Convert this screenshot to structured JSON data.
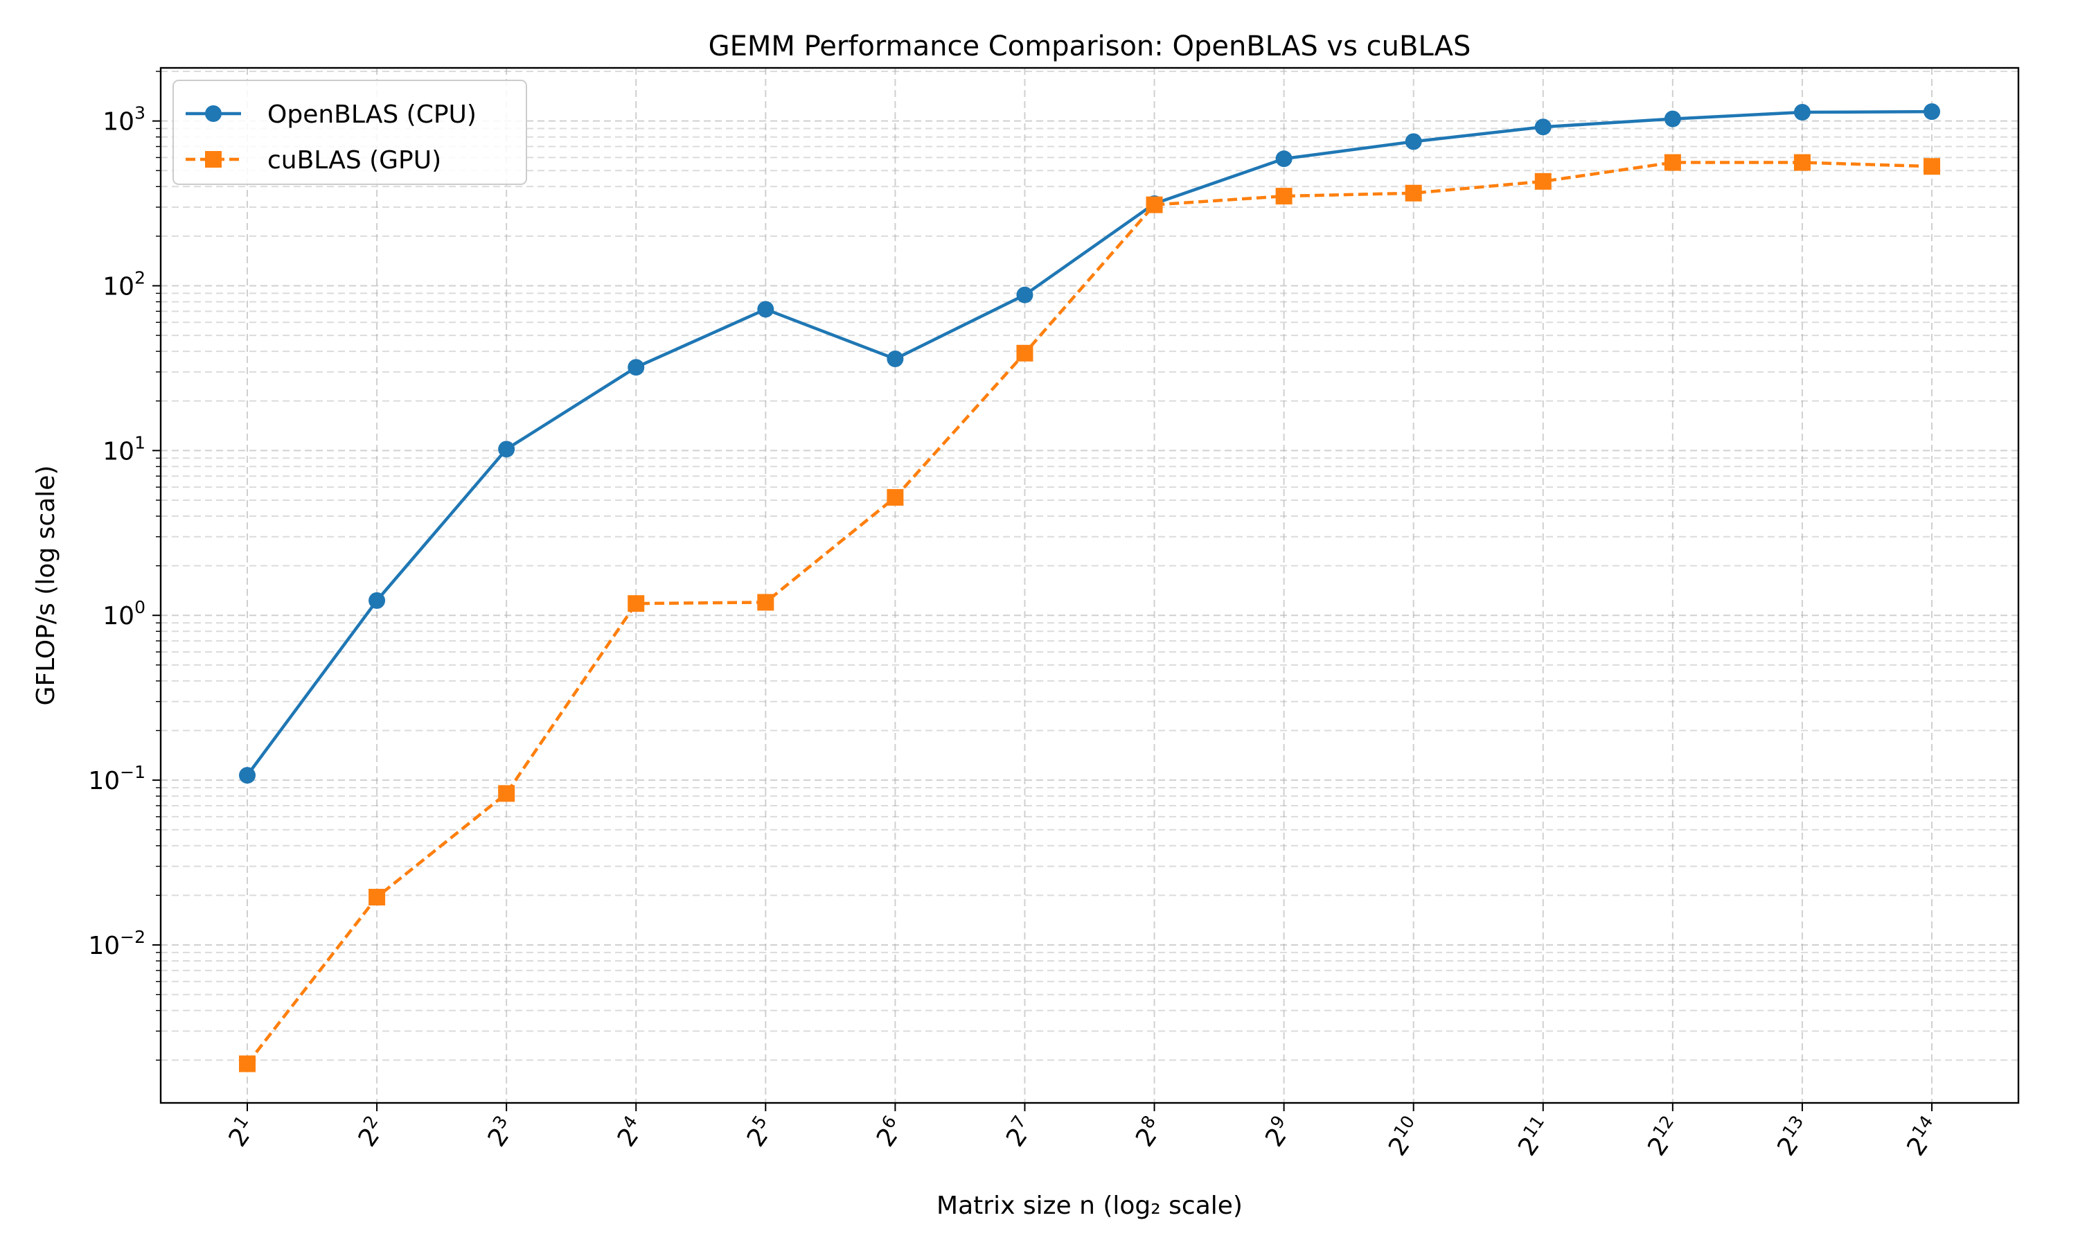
{
  "chart_data": {
    "type": "line",
    "title": "GEMM Performance Comparison: OpenBLAS vs cuBLAS",
    "xlabel": "Matrix size n (log₂ scale)",
    "ylabel": "GFLOP/s (log scale)",
    "x_scale": "log2",
    "y_scale": "log10",
    "x": [
      2,
      4,
      8,
      16,
      32,
      64,
      128,
      256,
      512,
      1024,
      2048,
      4096,
      8192,
      16384
    ],
    "x_tick_labels": [
      {
        "base": "2",
        "exp": "1"
      },
      {
        "base": "2",
        "exp": "2"
      },
      {
        "base": "2",
        "exp": "3"
      },
      {
        "base": "2",
        "exp": "4"
      },
      {
        "base": "2",
        "exp": "5"
      },
      {
        "base": "2",
        "exp": "6"
      },
      {
        "base": "2",
        "exp": "7"
      },
      {
        "base": "2",
        "exp": "8"
      },
      {
        "base": "2",
        "exp": "9"
      },
      {
        "base": "2",
        "exp": "10"
      },
      {
        "base": "2",
        "exp": "11"
      },
      {
        "base": "2",
        "exp": "12"
      },
      {
        "base": "2",
        "exp": "13"
      },
      {
        "base": "2",
        "exp": "14"
      }
    ],
    "y_tick_labels": [
      {
        "value": 0.01,
        "base": "10",
        "exp": "−2"
      },
      {
        "value": 0.1,
        "base": "10",
        "exp": "−1"
      },
      {
        "value": 1,
        "base": "10",
        "exp": "0"
      },
      {
        "value": 10,
        "base": "10",
        "exp": "1"
      },
      {
        "value": 100,
        "base": "10",
        "exp": "2"
      },
      {
        "value": 1000,
        "base": "10",
        "exp": "3"
      }
    ],
    "ylim": [
      0.0011,
      2100
    ],
    "grid": true,
    "legend_position": "top-left",
    "series": [
      {
        "name": "OpenBLAS (CPU)",
        "color": "#1f77b4",
        "line_style": "solid",
        "marker": "circle",
        "values": [
          0.107,
          1.23,
          10.2,
          32,
          72,
          36,
          88,
          315,
          590,
          750,
          920,
          1030,
          1130,
          1140
        ]
      },
      {
        "name": "cuBLAS (GPU)",
        "color": "#ff7f0e",
        "line_style": "dashed",
        "marker": "square",
        "values": [
          0.0019,
          0.0195,
          0.083,
          1.18,
          1.2,
          5.2,
          39,
          310,
          350,
          365,
          430,
          560,
          560,
          530
        ]
      }
    ]
  }
}
